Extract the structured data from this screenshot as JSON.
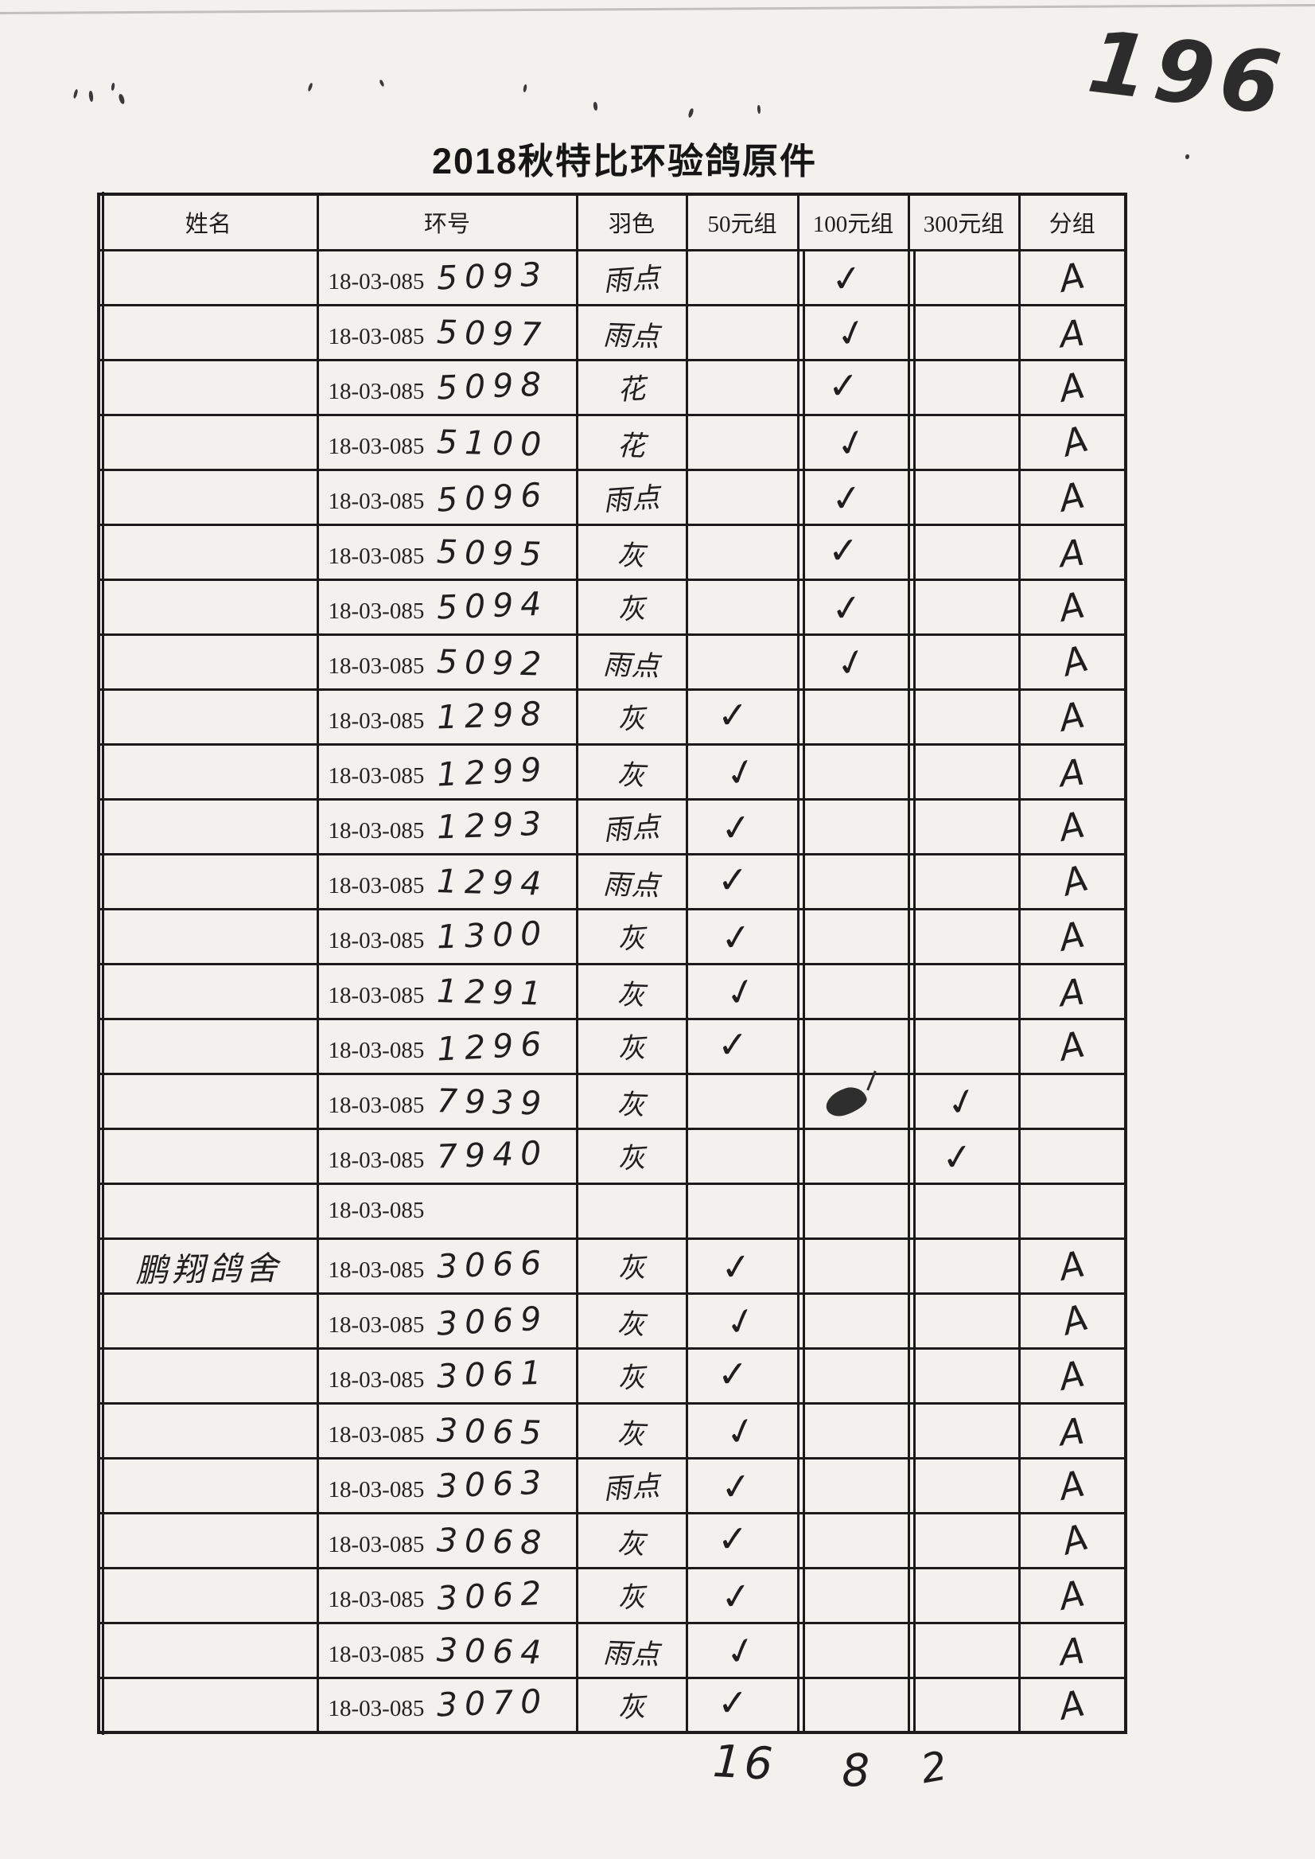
{
  "page_number": "196",
  "title": "2018秋特比环验鸽原件",
  "table": {
    "columns": [
      "姓名",
      "环号",
      "羽色",
      "50元组",
      "100元组",
      "300元组",
      "分组"
    ],
    "ring_prefix": "18-03-085",
    "rows": [
      {
        "name": "",
        "ring": "5093",
        "color": "雨点",
        "g50": "",
        "g100": "✓",
        "g300": "",
        "group": "A"
      },
      {
        "name": "",
        "ring": "5097",
        "color": "雨点",
        "g50": "",
        "g100": "✓",
        "g300": "",
        "group": "A"
      },
      {
        "name": "",
        "ring": "5098",
        "color": "花",
        "g50": "",
        "g100": "✓",
        "g300": "",
        "group": "A"
      },
      {
        "name": "",
        "ring": "5100",
        "color": "花",
        "g50": "",
        "g100": "✓",
        "g300": "",
        "group": "A"
      },
      {
        "name": "",
        "ring": "5096",
        "color": "雨点",
        "g50": "",
        "g100": "✓",
        "g300": "",
        "group": "A"
      },
      {
        "name": "",
        "ring": "5095",
        "color": "灰",
        "g50": "",
        "g100": "✓",
        "g300": "",
        "group": "A"
      },
      {
        "name": "",
        "ring": "5094",
        "color": "灰",
        "g50": "",
        "g100": "✓",
        "g300": "",
        "group": "A"
      },
      {
        "name": "",
        "ring": "5092",
        "color": "雨点",
        "g50": "",
        "g100": "✓",
        "g300": "",
        "group": "A"
      },
      {
        "name": "",
        "ring": "1298",
        "color": "灰",
        "g50": "✓",
        "g100": "",
        "g300": "",
        "group": "A"
      },
      {
        "name": "",
        "ring": "1299",
        "color": "灰",
        "g50": "✓",
        "g100": "",
        "g300": "",
        "group": "A"
      },
      {
        "name": "",
        "ring": "1293",
        "color": "雨点",
        "g50": "✓",
        "g100": "",
        "g300": "",
        "group": "A"
      },
      {
        "name": "",
        "ring": "1294",
        "color": "雨点",
        "g50": "✓",
        "g100": "",
        "g300": "",
        "group": "A"
      },
      {
        "name": "",
        "ring": "1300",
        "color": "灰",
        "g50": "✓",
        "g100": "",
        "g300": "",
        "group": "A"
      },
      {
        "name": "",
        "ring": "1291",
        "color": "灰",
        "g50": "✓",
        "g100": "",
        "g300": "",
        "group": "A"
      },
      {
        "name": "",
        "ring": "1296",
        "color": "灰",
        "g50": "✓",
        "g100": "",
        "g300": "",
        "group": "A"
      },
      {
        "name": "",
        "ring": "7939",
        "color": "灰",
        "g50": "",
        "g100": "blot",
        "g300": "✓",
        "group": ""
      },
      {
        "name": "",
        "ring": "7940",
        "color": "灰",
        "g50": "",
        "g100": "",
        "g300": "✓",
        "group": ""
      },
      {
        "name": "",
        "ring": "",
        "color": "",
        "g50": "",
        "g100": "",
        "g300": "",
        "group": ""
      },
      {
        "name": "鹏翔鸽舍",
        "ring": "3066",
        "color": "灰",
        "g50": "✓",
        "g100": "",
        "g300": "",
        "group": "A"
      },
      {
        "name": "",
        "ring": "3069",
        "color": "灰",
        "g50": "✓",
        "g100": "",
        "g300": "",
        "group": "A"
      },
      {
        "name": "",
        "ring": "3061",
        "color": "灰",
        "g50": "✓",
        "g100": "",
        "g300": "",
        "group": "A"
      },
      {
        "name": "",
        "ring": "3065",
        "color": "灰",
        "g50": "✓",
        "g100": "",
        "g300": "",
        "group": "A"
      },
      {
        "name": "",
        "ring": "3063",
        "color": "雨点",
        "g50": "✓",
        "g100": "",
        "g300": "",
        "group": "A"
      },
      {
        "name": "",
        "ring": "3068",
        "color": "灰",
        "g50": "✓",
        "g100": "",
        "g300": "",
        "group": "A"
      },
      {
        "name": "",
        "ring": "3062",
        "color": "灰",
        "g50": "✓",
        "g100": "",
        "g300": "",
        "group": "A"
      },
      {
        "name": "",
        "ring": "3064",
        "color": "雨点",
        "g50": "✓",
        "g100": "",
        "g300": "",
        "group": "A"
      },
      {
        "name": "",
        "ring": "3070",
        "color": "灰",
        "g50": "✓",
        "g100": "",
        "g300": "",
        "group": "A"
      }
    ],
    "totals": {
      "g50": "16",
      "g100": "8",
      "g300": "2"
    }
  }
}
